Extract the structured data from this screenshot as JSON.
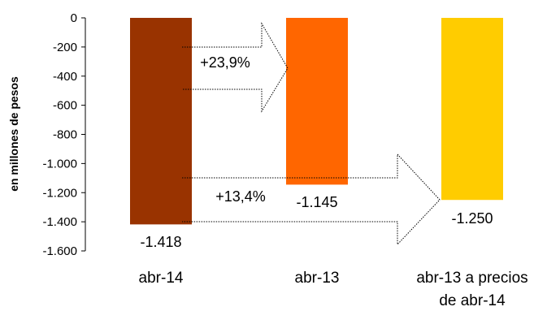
{
  "chart_data": {
    "type": "bar",
    "title": "",
    "xlabel": "",
    "ylabel": "en millones de pesos",
    "ylim": [
      -1600,
      0
    ],
    "yticks": [
      0,
      -200,
      -400,
      -600,
      -800,
      -1000,
      -1200,
      -1400,
      -1600
    ],
    "ytick_labels": [
      "0",
      "-200",
      "-400",
      "-600",
      "-800",
      "-1.000",
      "-1.200",
      "-1.400",
      "-1.600"
    ],
    "categories": [
      [
        "abr-14"
      ],
      [
        "abr-13"
      ],
      [
        "abr-13 a precios",
        "de abr-14"
      ]
    ],
    "values": [
      -1418,
      -1145,
      -1250
    ],
    "value_labels": [
      "-1.418",
      "-1.145",
      "-1.250"
    ],
    "colors": [
      "#993300",
      "#FF6600",
      "#FFCC00"
    ],
    "grid": false,
    "legend": "none",
    "annotations": [
      {
        "label": "+23,9%",
        "from": 0,
        "to": 1,
        "y_range": [
          -200,
          -650
        ]
      },
      {
        "label": "+13,4%",
        "from": 0,
        "to": 2,
        "y_range": [
          -1100,
          -1530
        ]
      }
    ]
  }
}
